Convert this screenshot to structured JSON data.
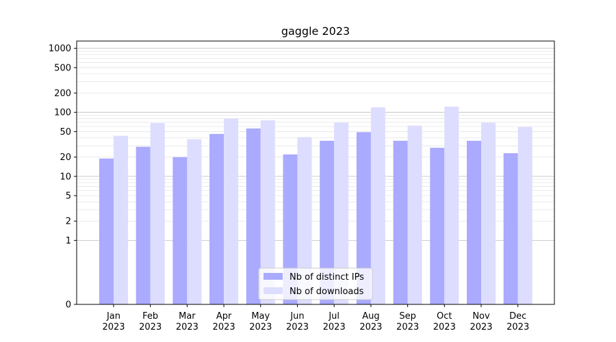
{
  "chart_data": {
    "type": "bar",
    "title": "gaggle 2023",
    "xlabel": "",
    "ylabel": "",
    "scale": "symlog",
    "ylim": [
      0,
      1300
    ],
    "y_ticks": [
      0,
      1,
      2,
      5,
      10,
      20,
      50,
      100,
      200,
      500,
      1000
    ],
    "categories": [
      {
        "month": "Jan",
        "year": "2023"
      },
      {
        "month": "Feb",
        "year": "2023"
      },
      {
        "month": "Mar",
        "year": "2023"
      },
      {
        "month": "Apr",
        "year": "2023"
      },
      {
        "month": "May",
        "year": "2023"
      },
      {
        "month": "Jun",
        "year": "2023"
      },
      {
        "month": "Jul",
        "year": "2023"
      },
      {
        "month": "Aug",
        "year": "2023"
      },
      {
        "month": "Sep",
        "year": "2023"
      },
      {
        "month": "Oct",
        "year": "2023"
      },
      {
        "month": "Nov",
        "year": "2023"
      },
      {
        "month": "Dec",
        "year": "2023"
      }
    ],
    "series": [
      {
        "name": "Nb of distinct IPs",
        "color": "#aaaaff",
        "values": [
          19,
          29,
          20,
          46,
          56,
          22,
          36,
          49,
          36,
          28,
          36,
          23
        ]
      },
      {
        "name": "Nb of downloads",
        "color": "#ddddff",
        "values": [
          43,
          68,
          38,
          80,
          75,
          41,
          69,
          120,
          62,
          123,
          69,
          59
        ]
      }
    ],
    "grid": true,
    "legend_position": "bottom-center"
  }
}
